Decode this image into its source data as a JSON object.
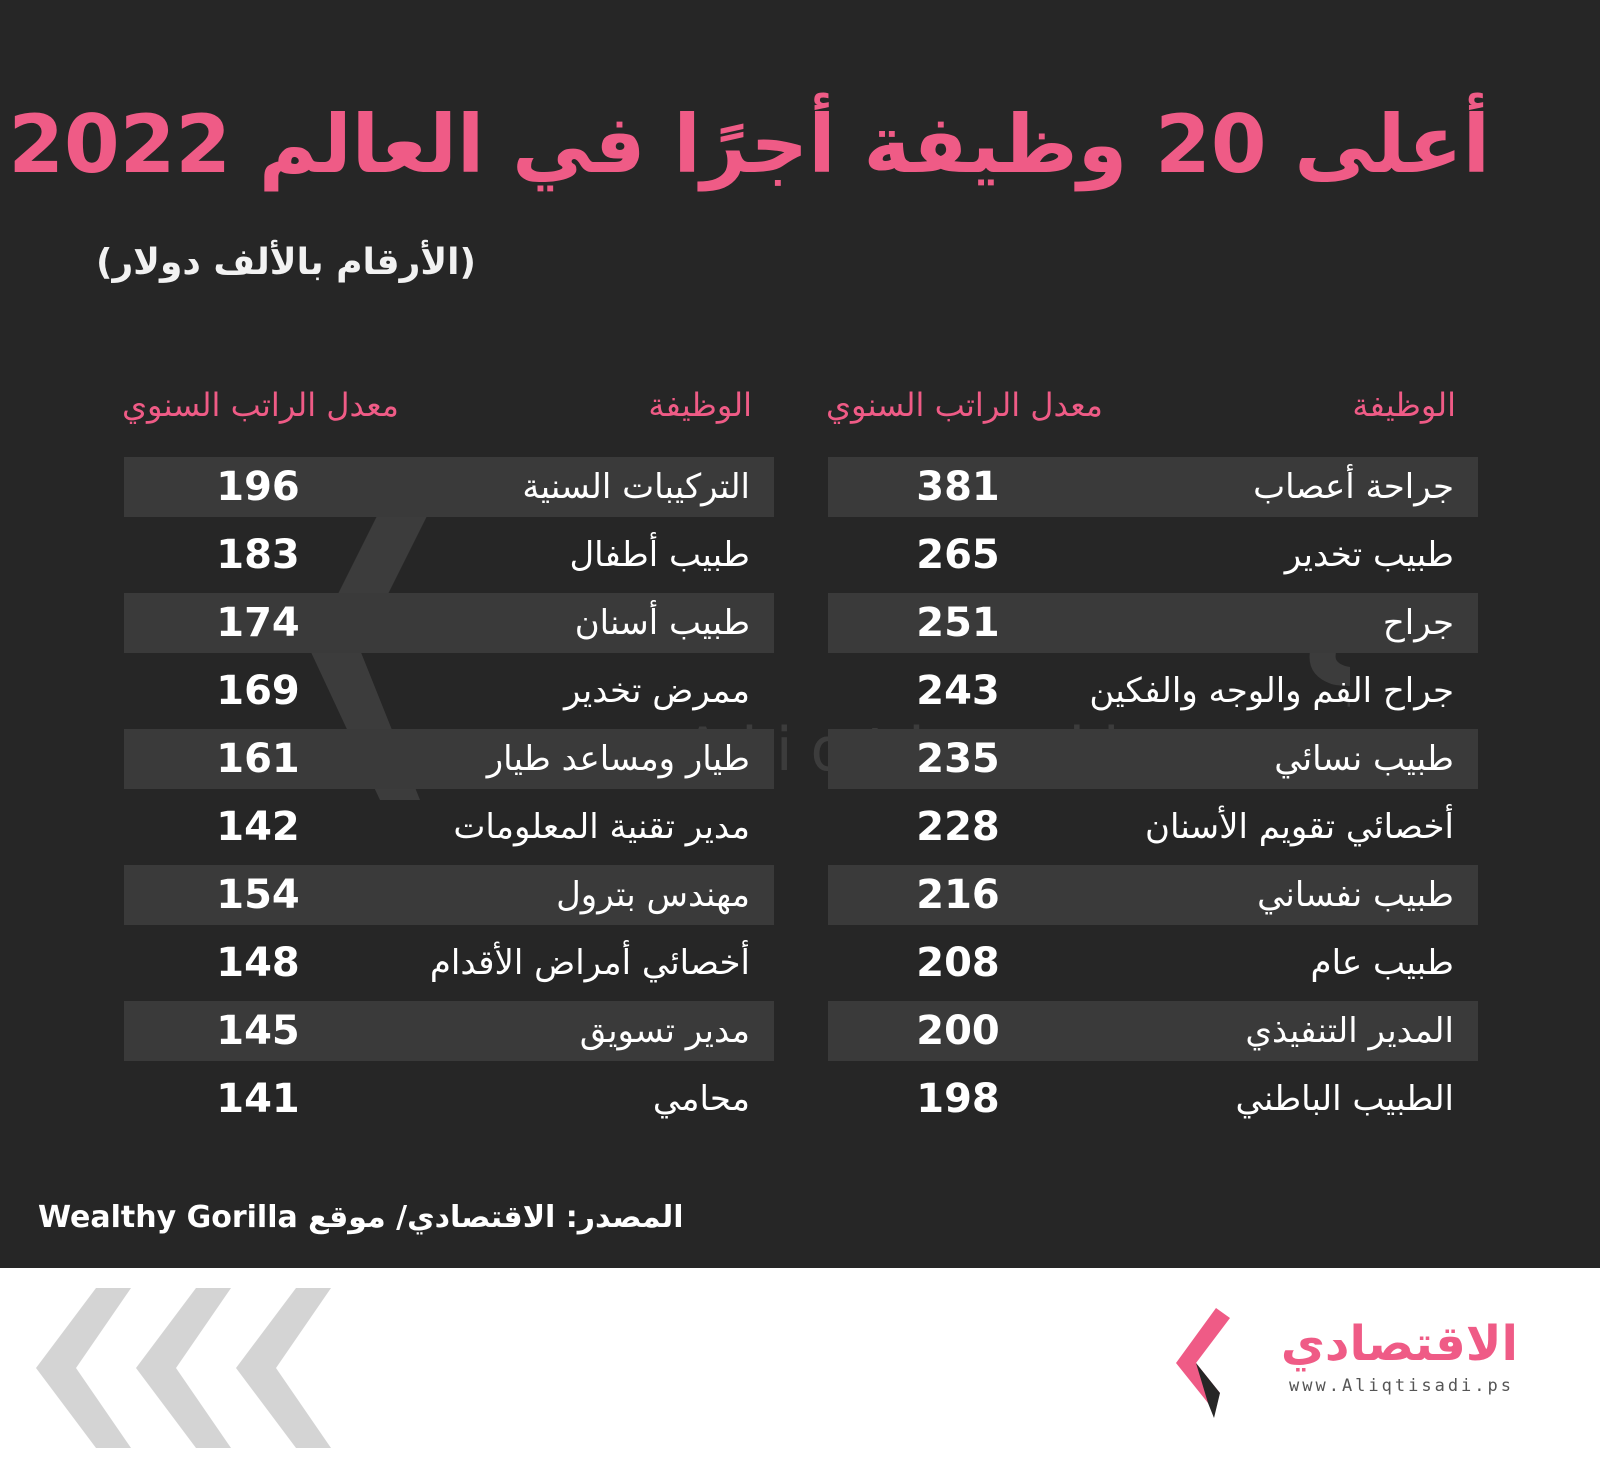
{
  "header": {
    "title": "أعلى 20 وظيفة أجرًا في العالم 2022",
    "subtitle": "(الأرقام بالألف دولار)"
  },
  "columns": {
    "job_header": "الوظيفة",
    "salary_header": "معدل الراتب السنوي"
  },
  "table_right": [
    {
      "job": "جراحة أعصاب",
      "salary": "381"
    },
    {
      "job": "طبيب تخدير",
      "salary": "265"
    },
    {
      "job": "جراح",
      "salary": "251"
    },
    {
      "job": "جراح الفم والوجه والفكين",
      "salary": "243"
    },
    {
      "job": "طبيب نسائي",
      "salary": "235"
    },
    {
      "job": "أخصائي تقويم الأسنان",
      "salary": "228"
    },
    {
      "job": "طبيب نفساني",
      "salary": "216"
    },
    {
      "job": "طبيب عام",
      "salary": "208"
    },
    {
      "job": "المدير التنفيذي",
      "salary": "200"
    },
    {
      "job": "الطبيب الباطني",
      "salary": "198"
    }
  ],
  "table_left": [
    {
      "job": "التركيبات السنية",
      "salary": "196"
    },
    {
      "job": "طبيب أطفال",
      "salary": "183"
    },
    {
      "job": "طبيب أسنان",
      "salary": "174"
    },
    {
      "job": "ممرض تخدير",
      "salary": "169"
    },
    {
      "job": "طيار ومساعد طيار",
      "salary": "161"
    },
    {
      "job": "مدير تقنية المعلومات",
      "salary": "142"
    },
    {
      "job": "مهندس بترول",
      "salary": "154"
    },
    {
      "job": "أخصائي أمراض الأقدام",
      "salary": "148"
    },
    {
      "job": "مدير تسويق",
      "salary": "145"
    },
    {
      "job": "محامي",
      "salary": "141"
    }
  ],
  "source": "المصدر: الاقتصادي/ موقع Wealthy Gorilla",
  "watermark": {
    "name": "الاقتصادي",
    "url": "www.Aliqtisadi.ps"
  },
  "logo": {
    "name": "الاقتصادي",
    "url": "www.Aliqtisadi.ps"
  },
  "colors": {
    "background": "#262626",
    "accent": "#ef5b86",
    "row_shade": "#3a3a3a",
    "text": "#ffffff"
  },
  "icons": {
    "decor": "chevron-left-triple-icon",
    "logo": "aliqtisadi-logo-mark"
  }
}
